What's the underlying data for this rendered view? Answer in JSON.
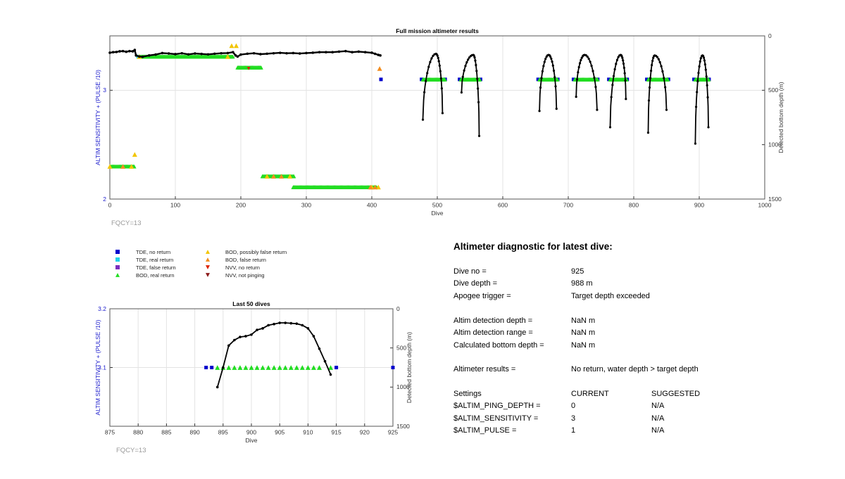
{
  "colors": {
    "tde_no_return": "#0000cc",
    "tde_real_return": "#22d3e8",
    "tde_false_return": "#7a2fbf",
    "bod_real_return": "#22dd22",
    "bod_possibly_false": "#f2c500",
    "bod_false_return": "#f28c1e",
    "nvv_no_return": "#dd2200",
    "nvv_not_pinging": "#8b1a1a",
    "depth_line": "#000000",
    "left_axis_label": "#1a1acc",
    "fqcy_label": "#999999"
  },
  "chart_data": [
    {
      "type": "scatter",
      "title": "Full mission altimeter results",
      "xlabel": "Dive",
      "ylabel": "ALTIM SENSITIVITY + (PULSE /10)",
      "ylabel_right": "Detected bottom depth (m)",
      "xlim": [
        0,
        1000
      ],
      "ylim": [
        2,
        3.5
      ],
      "ylim_right": [
        1500,
        0
      ],
      "x_ticks": [
        "0",
        "100",
        "200",
        "300",
        "400",
        "500",
        "600",
        "700",
        "800",
        "900",
        "1000"
      ],
      "y_ticks": [
        "2",
        "3"
      ],
      "y_ticks_right": [
        "0",
        "500",
        "1000",
        "1500"
      ],
      "grid": true,
      "note": "FQCY=13",
      "series": [
        {
          "name": "TDE, no return",
          "marker": "square",
          "color": "#0000cc",
          "runs": [
            [
              476,
              476
            ],
            [
              512,
              512
            ],
            [
              534,
              534
            ],
            [
              566,
              566
            ],
            [
              654,
              654
            ],
            [
              684,
              684
            ],
            [
              708,
              708
            ],
            [
              745,
              745
            ],
            [
              762,
              762
            ],
            [
              790,
              790
            ],
            [
              820,
              820
            ],
            [
              853,
              853
            ],
            [
              892,
              892
            ],
            [
              915,
              915
            ]
          ],
          "points": [
            [
              414,
              3.1
            ]
          ],
          "y": 3.1
        },
        {
          "name": "TDE, real return",
          "marker": "square",
          "color": "#22d3e8",
          "runs": [
            [
              43,
              43
            ]
          ],
          "y": 3.31
        },
        {
          "name": "BOD, real return",
          "marker": "triangle-up",
          "color": "#22dd22",
          "segments": [
            {
              "x": [
                0,
                38
              ],
              "y": 2.3
            },
            {
              "x": 45,
              "x2": 188,
              "y": 3.31
            },
            {
              "x": [
                195,
                232
              ],
              "y": 3.21
            },
            {
              "x": [
                233,
                281
              ],
              "y": 2.21
            },
            {
              "x": [
                280,
                408
              ],
              "y": 2.11
            },
            {
              "x": [
                478,
                512
              ],
              "y": 3.1
            },
            {
              "x": [
                536,
                566
              ],
              "y": 3.1
            },
            {
              "x": [
                656,
                684
              ],
              "y": 3.1
            },
            {
              "x": [
                710,
                745
              ],
              "y": 3.1
            },
            {
              "x": [
                764,
                790
              ],
              "y": 3.1
            },
            {
              "x": [
                822,
                853
              ],
              "y": 3.1
            },
            {
              "x": [
                894,
                915
              ],
              "y": 3.1
            }
          ]
        },
        {
          "name": "BOD, possibly false return",
          "marker": "triangle-up",
          "color": "#f2c500",
          "points": [
            [
              38,
              2.41
            ],
            [
              186,
              3.41
            ],
            [
              193,
              3.41
            ],
            [
              0,
              2.3
            ],
            [
              33,
              2.3
            ],
            [
              240,
              2.21
            ],
            [
              275,
              2.21
            ],
            [
              400,
              2.11
            ],
            [
              410,
              2.11
            ],
            [
              45,
              3.31
            ],
            [
              180,
              3.31
            ]
          ]
        },
        {
          "name": "BOD, false return",
          "marker": "triangle-up",
          "color": "#f28c1e",
          "points": [
            [
              412,
              3.2
            ],
            [
              398,
              2.11
            ],
            [
              405,
              2.11
            ],
            [
              20,
              2.3
            ],
            [
              250,
              2.21
            ],
            [
              262,
              2.21
            ]
          ]
        },
        {
          "name": "NVV, no return",
          "marker": "triangle-down",
          "color": "#dd2200",
          "points": [
            [
              212,
              3.2
            ]
          ]
        },
        {
          "name": "NVV, not pinging",
          "marker": "triangle-down",
          "color": "#8b1a1a",
          "points": []
        }
      ],
      "depth_series": {
        "name": "Detected bottom depth",
        "flat": [
          [
            0,
            155
          ],
          [
            5,
            150
          ],
          [
            10,
            148
          ],
          [
            15,
            142
          ],
          [
            20,
            140
          ],
          [
            25,
            146
          ],
          [
            30,
            140
          ],
          [
            35,
            142
          ],
          [
            38,
            130
          ],
          [
            40,
            180
          ],
          [
            45,
            190
          ],
          [
            50,
            192
          ],
          [
            60,
            180
          ],
          [
            70,
            172
          ],
          [
            80,
            158
          ],
          [
            90,
            162
          ],
          [
            100,
            168
          ],
          [
            110,
            160
          ],
          [
            120,
            170
          ],
          [
            130,
            162
          ],
          [
            140,
            166
          ],
          [
            150,
            170
          ],
          [
            160,
            164
          ],
          [
            170,
            160
          ],
          [
            180,
            158
          ],
          [
            188,
            150
          ],
          [
            192,
            180
          ],
          [
            195,
            190
          ],
          [
            200,
            172
          ],
          [
            210,
            164
          ],
          [
            220,
            160
          ],
          [
            230,
            168
          ],
          [
            240,
            164
          ],
          [
            250,
            160
          ],
          [
            260,
            156
          ],
          [
            270,
            160
          ],
          [
            280,
            158
          ],
          [
            290,
            162
          ],
          [
            300,
            158
          ],
          [
            310,
            155
          ],
          [
            320,
            150
          ],
          [
            330,
            150
          ],
          [
            340,
            150
          ],
          [
            350,
            145
          ],
          [
            360,
            140
          ],
          [
            370,
            150
          ],
          [
            380,
            145
          ],
          [
            390,
            150
          ],
          [
            400,
            155
          ],
          [
            405,
            165
          ],
          [
            410,
            175
          ],
          [
            413,
            180
          ]
        ],
        "peaks": [
          {
            "x0": 478,
            "x1": 508,
            "xmax": 498,
            "top": 165,
            "ends": [
              770,
              710
            ]
          },
          {
            "x0": 537,
            "x1": 564,
            "xmax": 555,
            "top": 175,
            "ends": [
              520,
              920
            ]
          },
          {
            "x0": 656,
            "x1": 682,
            "xmax": 670,
            "top": 175,
            "ends": [
              690,
              670
            ]
          },
          {
            "x0": 712,
            "x1": 744,
            "xmax": 725,
            "top": 175,
            "ends": [
              560,
              680
            ]
          },
          {
            "x0": 764,
            "x1": 788,
            "xmax": 780,
            "top": 175,
            "ends": [
              840,
              580
            ]
          },
          {
            "x0": 822,
            "x1": 850,
            "xmax": 832,
            "top": 180,
            "ends": [
              890,
              680
            ]
          },
          {
            "x0": 894,
            "x1": 914,
            "xmax": 905,
            "top": 180,
            "ends": [
              990,
              840
            ]
          }
        ]
      }
    },
    {
      "type": "scatter",
      "title": "Last 50 dives",
      "xlabel": "Dive",
      "ylabel": "ALTIM SENSITIVITY + (PULSE /10)",
      "ylabel_right": "Detected bottom depth (m)",
      "xlim": [
        875,
        925
      ],
      "ylim": [
        3.0,
        3.2
      ],
      "ylim_right": [
        1500,
        0
      ],
      "x_ticks": [
        "875",
        "880",
        "885",
        "890",
        "895",
        "900",
        "905",
        "910",
        "915",
        "920",
        "925"
      ],
      "y_ticks": [
        "3.1",
        "3.2"
      ],
      "y_ticks_right": [
        "0",
        "500",
        "1000",
        "1500"
      ],
      "grid": true,
      "note": "FQCY=13",
      "series": [
        {
          "name": "TDE, no return",
          "marker": "square",
          "color": "#0000cc",
          "x": [
            892,
            893,
            915,
            925
          ],
          "y": 3.1
        },
        {
          "name": "BOD, real return",
          "marker": "triangle-up",
          "color": "#22dd22",
          "x": [
            894,
            895,
            896,
            897,
            898,
            899,
            900,
            901,
            902,
            903,
            904,
            905,
            906,
            907,
            908,
            909,
            910,
            911,
            912,
            914
          ],
          "y": 3.1
        }
      ],
      "depth_series": {
        "name": "Detected bottom depth",
        "x": [
          894,
          895,
          896,
          897,
          898,
          899,
          900,
          901,
          902,
          903,
          904,
          905,
          906,
          907,
          908,
          909,
          910,
          911,
          912,
          913,
          914
        ],
        "y": [
          1000,
          750,
          470,
          400,
          360,
          350,
          330,
          270,
          250,
          210,
          195,
          180,
          180,
          185,
          190,
          210,
          250,
          350,
          510,
          670,
          840
        ]
      }
    }
  ],
  "legend": [
    {
      "label": "TDE, no return",
      "marker": "square",
      "color": "#0000cc"
    },
    {
      "label": "TDE, real return",
      "marker": "square",
      "color": "#22d3e8"
    },
    {
      "label": "TDE, false return",
      "marker": "square",
      "color": "#7a2fbf"
    },
    {
      "label": "BOD, real return",
      "marker": "triangle-up",
      "color": "#22dd22"
    },
    {
      "label": "BOD, possibly false return",
      "marker": "triangle-up",
      "color": "#f2c500"
    },
    {
      "label": "BOD, false return",
      "marker": "triangle-up",
      "color": "#f28c1e"
    },
    {
      "label": "NVV, no return",
      "marker": "triangle-down",
      "color": "#dd2200"
    },
    {
      "label": "NVV, not pinging",
      "marker": "triangle-down",
      "color": "#8b1a1a"
    }
  ],
  "diagnostic": {
    "title": "Altimeter diagnostic for latest dive:",
    "dive_no_label": "Dive no =",
    "dive_no": "925",
    "dive_depth_label": "Dive depth =",
    "dive_depth": "988 m",
    "apogee_trigger_label": "Apogee trigger =",
    "apogee_trigger": "Target depth exceeded",
    "altim_detection_depth_label": "Altim detection depth =",
    "altim_detection_depth": "NaN m",
    "altim_detection_range_label": "Altim detection range =",
    "altim_detection_range": "NaN m",
    "calculated_bottom_depth_label": "Calculated bottom depth =",
    "calculated_bottom_depth": "NaN m",
    "altimeter_results_label": "Altimeter results =",
    "altimeter_results": "No return, water depth > target depth",
    "settings_header": "Settings",
    "current_header": "CURRENT",
    "suggested_header": "SUGGESTED",
    "settings": [
      {
        "name": "$ALTIM_PING_DEPTH =",
        "current": "0",
        "suggested": "N/A"
      },
      {
        "name": "$ALTIM_SENSITIVITY =",
        "current": "3",
        "suggested": "N/A"
      },
      {
        "name": "$ALTIM_PULSE =",
        "current": "1",
        "suggested": "N/A"
      }
    ]
  }
}
